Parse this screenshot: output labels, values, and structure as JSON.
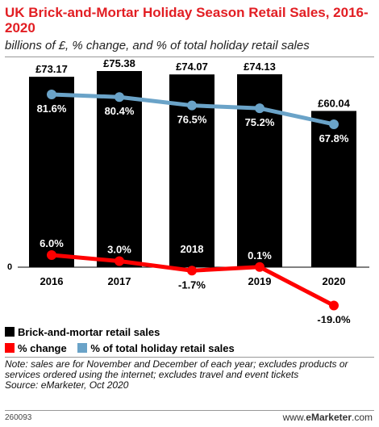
{
  "chart_data": {
    "type": "bar",
    "title": "UK Brick-and-Mortar Holiday Season Retail Sales, 2016-2020",
    "subtitle": "billions of £, % change, and % of total holiday retail sales",
    "categories": [
      "2016",
      "2017",
      "2018",
      "2019",
      "2020"
    ],
    "zero_label": "0",
    "series": [
      {
        "name": "Brick-and-mortar retail sales",
        "type": "bar",
        "values": [
          73.17,
          75.38,
          74.07,
          74.13,
          60.04
        ],
        "labels": [
          "£73.17",
          "£75.38",
          "£74.07",
          "£74.13",
          "£60.04"
        ],
        "color": "#000000"
      },
      {
        "name": "% change",
        "type": "line",
        "values": [
          6.0,
          3.0,
          -1.7,
          0.1,
          -19.0
        ],
        "labels": [
          "6.0%",
          "3.0%",
          "-1.7%",
          "0.1%",
          "-19.0%"
        ],
        "color": "#ff0000"
      },
      {
        "name": "% of total holiday retail sales",
        "type": "line",
        "values": [
          81.6,
          80.4,
          76.5,
          75.2,
          67.8
        ],
        "labels": [
          "81.6%",
          "80.4%",
          "76.5%",
          "75.2%",
          "67.8%"
        ],
        "color": "#6aa3c8"
      }
    ],
    "note": "Note: sales are for November and December of each year; excludes products or services ordered using the internet; excludes travel and event tickets",
    "source": "Source: eMarketer, Oct 2020"
  },
  "footer": {
    "id": "260093",
    "brand_prefix": "www.",
    "brand_name": "eMarketer",
    "brand_suffix": ".com"
  }
}
